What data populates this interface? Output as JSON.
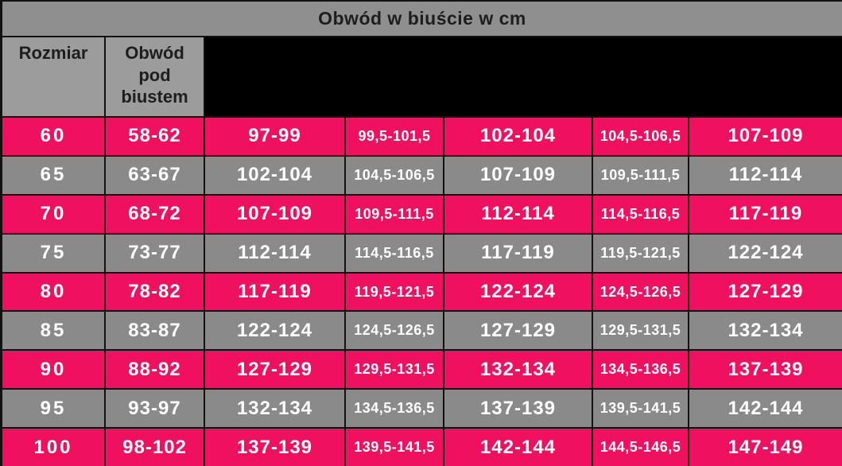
{
  "title": "Obwód w biuście w cm",
  "header": {
    "size": "Rozmiar",
    "underbust": "Obwód pod biustem"
  },
  "rows": [
    {
      "size": "60",
      "underbust": "58-62",
      "values": [
        "97-99",
        "99,5-101,5",
        "102-104",
        "104,5-106,5",
        "107-109"
      ]
    },
    {
      "size": "65",
      "underbust": "63-67",
      "values": [
        "102-104",
        "104,5-106,5",
        "107-109",
        "109,5-111,5",
        "112-114"
      ]
    },
    {
      "size": "70",
      "underbust": "68-72",
      "values": [
        "107-109",
        "109,5-111,5",
        "112-114",
        "114,5-116,5",
        "117-119"
      ]
    },
    {
      "size": "75",
      "underbust": "73-77",
      "values": [
        "112-114",
        "114,5-116,5",
        "117-119",
        "119,5-121,5",
        "122-124"
      ]
    },
    {
      "size": "80",
      "underbust": "78-82",
      "values": [
        "117-119",
        "119,5-121,5",
        "122-124",
        "124,5-126,5",
        "127-129"
      ]
    },
    {
      "size": "85",
      "underbust": "83-87",
      "values": [
        "122-124",
        "124,5-126,5",
        "127-129",
        "129,5-131,5",
        "132-134"
      ]
    },
    {
      "size": "90",
      "underbust": "88-92",
      "values": [
        "127-129",
        "129,5-131,5",
        "132-134",
        "134,5-136,5",
        "137-139"
      ]
    },
    {
      "size": "95",
      "underbust": "93-97",
      "values": [
        "132-134",
        "134,5-136,5",
        "137-139",
        "139,5-141,5",
        "142-144"
      ]
    },
    {
      "size": "100",
      "underbust": "98-102",
      "values": [
        "137-139",
        "139,5-141,5",
        "142-144",
        "144,5-146,5",
        "147-149"
      ]
    }
  ],
  "colors": {
    "pink": "#ef105f",
    "gray_row": "#8a8a8b",
    "title_bar": "#908f90",
    "header_gray": "#9c9c9d",
    "black_block": "#000000",
    "border": "#121212",
    "text_light": "#ffffff",
    "text_dark": "#1e1e1e"
  },
  "chart_data": {
    "type": "table",
    "title": "Obwód w biuście w cm",
    "columns": [
      "Rozmiar",
      "Obwód pod biustem",
      "",
      "",
      "",
      "",
      ""
    ],
    "column_headers_redacted": true,
    "rows": [
      [
        "60",
        "58-62",
        "97-99",
        "99,5-101,5",
        "102-104",
        "104,5-106,5",
        "107-109"
      ],
      [
        "65",
        "63-67",
        "102-104",
        "104,5-106,5",
        "107-109",
        "109,5-111,5",
        "112-114"
      ],
      [
        "70",
        "68-72",
        "107-109",
        "109,5-111,5",
        "112-114",
        "114,5-116,5",
        "117-119"
      ],
      [
        "75",
        "73-77",
        "112-114",
        "114,5-116,5",
        "117-119",
        "119,5-121,5",
        "122-124"
      ],
      [
        "80",
        "78-82",
        "117-119",
        "119,5-121,5",
        "122-124",
        "124,5-126,5",
        "127-129"
      ],
      [
        "85",
        "83-87",
        "122-124",
        "124,5-126,5",
        "127-129",
        "129,5-131,5",
        "132-134"
      ],
      [
        "90",
        "88-92",
        "127-129",
        "129,5-131,5",
        "132-134",
        "134,5-136,5",
        "137-139"
      ],
      [
        "95",
        "93-97",
        "132-134",
        "134,5-136,5",
        "137-139",
        "139,5-141,5",
        "142-144"
      ],
      [
        "100",
        "98-102",
        "137-139",
        "139,5-141,5",
        "142-144",
        "144,5-146,5",
        "147-149"
      ]
    ]
  }
}
